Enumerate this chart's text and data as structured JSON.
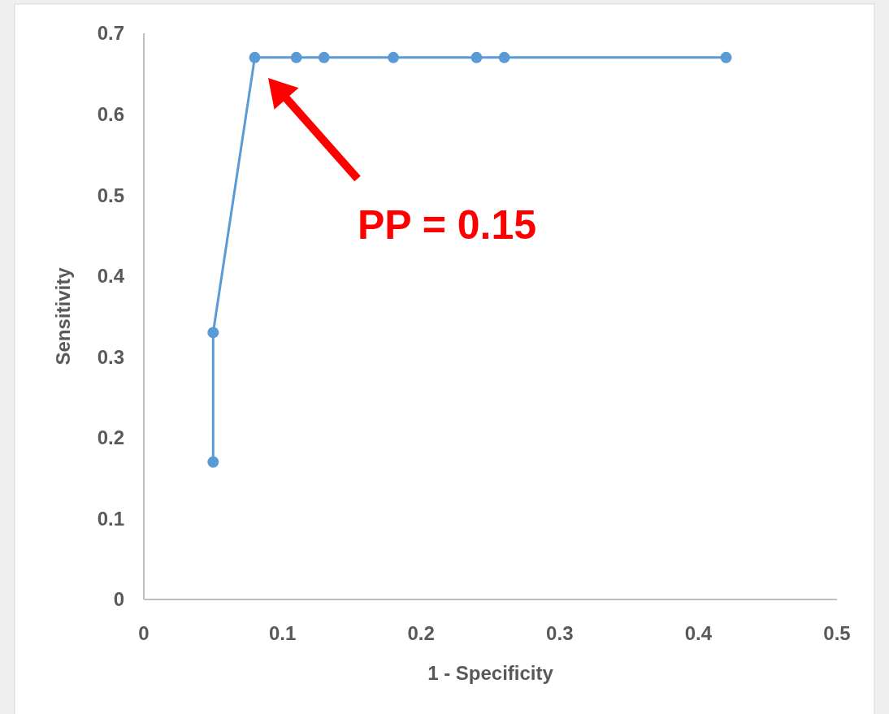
{
  "chart_data": {
    "type": "line",
    "xlabel": "1 - Specificity",
    "ylabel": "Sensitivity",
    "x": [
      0.05,
      0.05,
      0.08,
      0.11,
      0.13,
      0.18,
      0.24,
      0.26,
      0.42
    ],
    "series": [
      {
        "color": "#5b9bd5",
        "values": [
          0.17,
          0.33,
          0.67,
          0.67,
          0.67,
          0.67,
          0.67,
          0.67,
          0.67
        ]
      }
    ],
    "xlim": [
      0,
      0.5
    ],
    "xticks": [
      0,
      0.1,
      0.2,
      0.3,
      0.4,
      0.5
    ],
    "ylim": [
      0,
      0.7
    ],
    "yticks": [
      0,
      0.1,
      0.2,
      0.3,
      0.4,
      0.5,
      0.6,
      0.7
    ],
    "marker": "circle",
    "line_style": "solid",
    "grid": false,
    "annotations": [
      "PP = 0.15"
    ]
  }
}
